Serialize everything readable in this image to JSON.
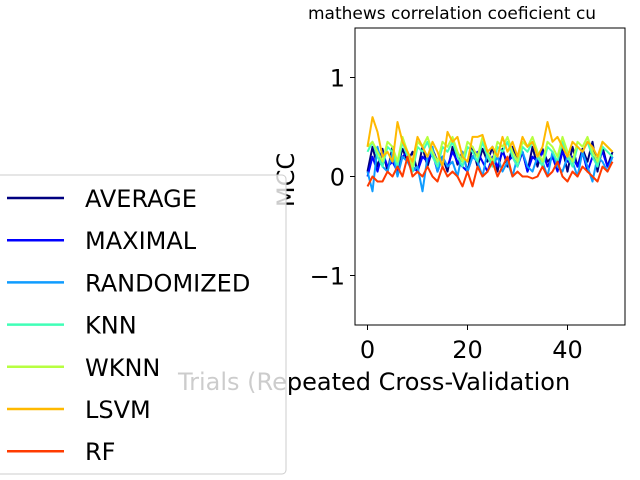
{
  "chart_data": {
    "type": "line",
    "title": "mathews correlation coeficient cu",
    "xlabel": "Trials (Repeated Cross-Validation",
    "ylabel": "MCC",
    "xlim": [
      -2.5,
      51.5
    ],
    "ylim": [
      -1.5,
      1.5
    ],
    "xticks": [
      0,
      20,
      40
    ],
    "yticks": [
      1,
      0,
      -1
    ],
    "ytick_labels": [
      "1",
      "0",
      "−1"
    ],
    "grid": false,
    "legend_position": "lower-left",
    "x": [
      0,
      1,
      2,
      3,
      4,
      5,
      6,
      7,
      8,
      9,
      10,
      11,
      12,
      13,
      14,
      15,
      16,
      17,
      18,
      19,
      20,
      21,
      22,
      23,
      24,
      25,
      26,
      27,
      28,
      29,
      30,
      31,
      32,
      33,
      34,
      35,
      36,
      37,
      38,
      39,
      40,
      41,
      42,
      43,
      44,
      45,
      46,
      47,
      48,
      49
    ],
    "series": [
      {
        "name": "AVERAGE",
        "color": "#000080",
        "values": [
          0.05,
          0.3,
          0.1,
          0.28,
          0.05,
          0.3,
          0.1,
          0.28,
          0.15,
          0.25,
          0.05,
          0.3,
          0.1,
          0.28,
          0.15,
          0.2,
          0.05,
          0.3,
          0.12,
          0.25,
          0.05,
          0.3,
          0.1,
          0.28,
          0.15,
          0.3,
          0.05,
          0.28,
          0.1,
          0.3,
          0.15,
          0.25,
          0.05,
          0.3,
          0.1,
          0.28,
          0.15,
          0.2,
          0.1,
          0.28,
          0.05,
          0.3,
          0.1,
          0.28,
          0.15,
          0.35,
          0.05,
          0.3,
          0.1,
          0.25
        ]
      },
      {
        "name": "MAXIMAL",
        "color": "#0000ff",
        "values": [
          0.0,
          0.2,
          0.05,
          0.25,
          0.1,
          0.15,
          0.05,
          0.2,
          0.25,
          0.1,
          0.05,
          0.2,
          0.15,
          0.25,
          0.05,
          0.2,
          0.1,
          0.25,
          0.15,
          0.1,
          0.05,
          0.2,
          0.25,
          0.15,
          0.05,
          0.2,
          0.1,
          0.25,
          0.15,
          0.2,
          0.1,
          0.25,
          0.05,
          0.2,
          0.15,
          0.25,
          0.1,
          0.2,
          0.05,
          0.25,
          0.15,
          0.2,
          0.1,
          0.25,
          0.05,
          0.2,
          0.15,
          0.25,
          0.1,
          0.2
        ]
      },
      {
        "name": "RANDOMIZED",
        "color": "#0f9cff",
        "values": [
          0.05,
          -0.15,
          0.3,
          0.1,
          0.05,
          0.25,
          0.0,
          0.2,
          0.15,
          0.05,
          0.1,
          -0.15,
          0.2,
          0.3,
          0.05,
          0.2,
          0.1,
          0.15,
          0.0,
          0.25,
          0.05,
          0.2,
          0.15,
          0.0,
          0.25,
          0.1,
          0.2,
          0.05,
          0.15,
          0.0,
          0.2,
          0.25,
          0.1,
          0.05,
          0.2,
          0.15,
          0.0,
          0.25,
          0.1,
          0.05,
          0.2,
          0.15,
          0.0,
          0.25,
          0.1,
          -0.05,
          0.2,
          0.15,
          0.05,
          0.2
        ]
      },
      {
        "name": "KNN",
        "color": "#40ffb7",
        "values": [
          0.25,
          0.35,
          0.2,
          0.1,
          0.3,
          0.25,
          0.1,
          0.35,
          0.2,
          0.05,
          0.3,
          0.25,
          0.35,
          0.2,
          0.1,
          0.3,
          0.25,
          0.35,
          0.2,
          0.1,
          0.3,
          0.25,
          0.15,
          0.35,
          0.2,
          0.1,
          0.3,
          0.25,
          0.35,
          0.2,
          0.1,
          0.3,
          0.25,
          0.35,
          0.2,
          0.1,
          0.3,
          0.25,
          0.15,
          0.35,
          0.2,
          0.1,
          0.3,
          0.25,
          0.35,
          0.2,
          0.1,
          0.3,
          0.25,
          0.2
        ]
      },
      {
        "name": "WKNN",
        "color": "#b7ff40",
        "values": [
          0.3,
          0.35,
          0.25,
          0.15,
          0.35,
          0.3,
          0.15,
          0.4,
          0.25,
          0.1,
          0.35,
          0.3,
          0.4,
          0.25,
          0.15,
          0.35,
          0.3,
          0.4,
          0.25,
          0.15,
          0.35,
          0.3,
          0.2,
          0.4,
          0.25,
          0.15,
          0.35,
          0.3,
          0.4,
          0.25,
          0.15,
          0.35,
          0.3,
          0.4,
          0.25,
          0.15,
          0.35,
          0.3,
          0.2,
          0.4,
          0.25,
          0.15,
          0.35,
          0.3,
          0.4,
          0.25,
          0.15,
          0.35,
          0.3,
          0.25
        ]
      },
      {
        "name": "LSVM",
        "color": "#ffb900",
        "values": [
          0.3,
          0.6,
          0.45,
          0.2,
          0.25,
          0.15,
          0.55,
          0.35,
          0.25,
          0.15,
          0.4,
          0.3,
          0.2,
          0.35,
          0.25,
          0.1,
          0.45,
          0.35,
          0.4,
          0.2,
          0.15,
          0.4,
          0.4,
          0.42,
          0.25,
          0.3,
          0.2,
          0.4,
          0.25,
          0.35,
          0.2,
          0.4,
          0.3,
          0.35,
          0.2,
          0.3,
          0.55,
          0.35,
          0.4,
          0.3,
          0.2,
          0.35,
          0.3,
          0.25,
          0.35,
          0.3,
          0.2,
          0.35,
          0.3,
          0.25
        ]
      },
      {
        "name": "RF",
        "color": "#ff3b00",
        "values": [
          -0.1,
          0.0,
          -0.05,
          -0.05,
          0.05,
          0.0,
          0.1,
          0.0,
          0.2,
          0.0,
          0.05,
          0.0,
          0.1,
          0.0,
          -0.05,
          0.1,
          0.0,
          0.05,
          0.0,
          -0.1,
          0.05,
          -0.1,
          0.1,
          0.0,
          0.05,
          0.15,
          0.0,
          0.1,
          0.2,
          0.0,
          0.05,
          0.0,
          0.0,
          -0.02,
          0.0,
          0.1,
          0.0,
          0.05,
          0.15,
          0.0,
          -0.05,
          0.05,
          0.0,
          0.1,
          0.05,
          0.0,
          -0.05,
          0.1,
          0.05,
          0.15
        ]
      }
    ]
  }
}
